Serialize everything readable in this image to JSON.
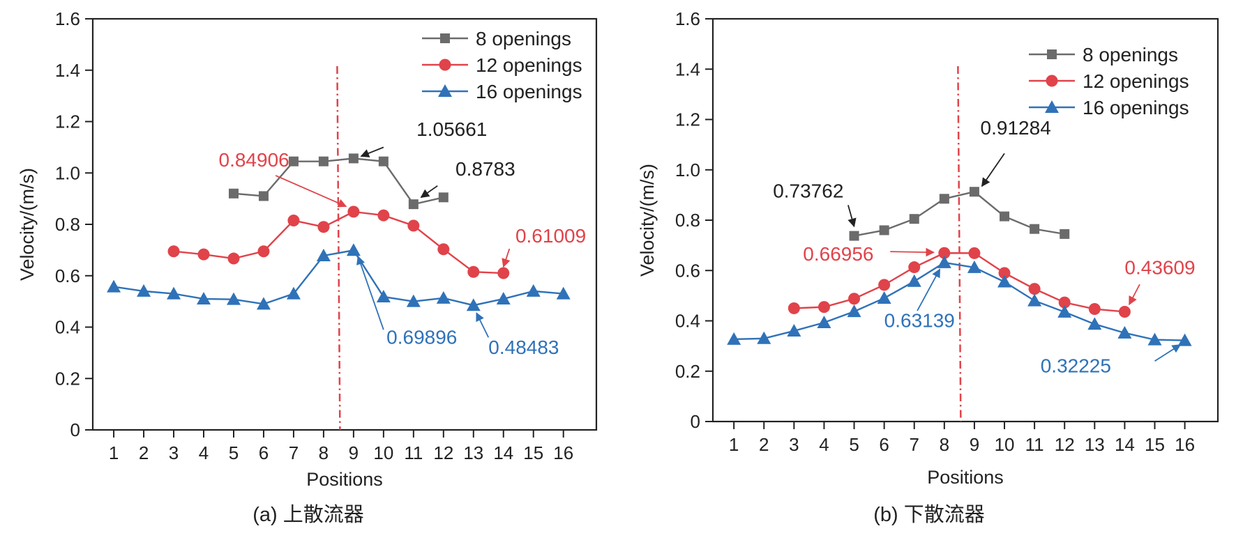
{
  "chart_data": [
    {
      "type": "line",
      "caption": "(a) 上散流器",
      "xlabel": "Positions",
      "ylabel": "Velocity/(m/s)",
      "xlim": [
        0.3,
        17.1
      ],
      "ylim": [
        0,
        1.6
      ],
      "xticks": [
        1,
        2,
        3,
        4,
        5,
        6,
        7,
        8,
        9,
        10,
        11,
        12,
        13,
        14,
        15,
        16
      ],
      "yticks": [
        0,
        0.2,
        0.4,
        0.6,
        0.8,
        1.0,
        1.2,
        1.4,
        1.6
      ],
      "ytick_labels": [
        "0",
        "0.2",
        "0.4",
        "0.6",
        "0.8",
        "1.0",
        "1.2",
        "1.4",
        "1.6"
      ],
      "divider_x": 8.5,
      "legend_position": "top-right",
      "series": [
        {
          "name": "8 openings",
          "marker": "square",
          "color": "#6b6b6b",
          "x": [
            5,
            6,
            7,
            8,
            9,
            10,
            11,
            12
          ],
          "y": [
            0.92,
            0.91,
            1.045,
            1.045,
            1.05661,
            1.045,
            0.8783,
            0.905
          ]
        },
        {
          "name": "12 openings",
          "marker": "circle",
          "color": "#e0434a",
          "x": [
            3,
            4,
            5,
            6,
            7,
            8,
            9,
            10,
            11,
            12,
            13,
            14
          ],
          "y": [
            0.695,
            0.683,
            0.667,
            0.695,
            0.815,
            0.79,
            0.84906,
            0.835,
            0.795,
            0.703,
            0.615,
            0.61009
          ]
        },
        {
          "name": "16 openings",
          "marker": "triangle",
          "color": "#2f72b8",
          "x": [
            1,
            2,
            3,
            4,
            5,
            6,
            7,
            8,
            9,
            10,
            11,
            12,
            13,
            14,
            15,
            16
          ],
          "y": [
            0.557,
            0.54,
            0.53,
            0.51,
            0.508,
            0.49,
            0.53,
            0.678,
            0.69896,
            0.518,
            0.5,
            0.513,
            0.48483,
            0.51,
            0.54,
            0.53
          ]
        }
      ],
      "annotations": [
        {
          "text": "1.05661",
          "color": "#222222",
          "text_x": 11.1,
          "text_y": 1.145,
          "arrow_from": [
            10.0,
            1.1
          ],
          "arrow_to": [
            9.25,
            1.065
          ]
        },
        {
          "text": "0.8783",
          "color": "#222222",
          "text_x": 12.4,
          "text_y": 0.99,
          "arrow_from": [
            11.8,
            0.95
          ],
          "arrow_to": [
            11.25,
            0.905
          ]
        },
        {
          "text": "0.84906",
          "color": "#e0434a",
          "text_x": 4.5,
          "text_y": 1.025,
          "arrow_from": [
            6.4,
            0.99
          ],
          "arrow_to": [
            8.75,
            0.87
          ]
        },
        {
          "text": "0.61009",
          "color": "#e0434a",
          "text_x": 14.4,
          "text_y": 0.73,
          "arrow_from": [
            14.2,
            0.705
          ],
          "arrow_to": [
            14.0,
            0.635
          ]
        },
        {
          "text": "0.69896",
          "color": "#2f72b8",
          "text_x": 10.1,
          "text_y": 0.335,
          "arrow_from": [
            10.0,
            0.39
          ],
          "arrow_to": [
            9.15,
            0.675
          ]
        },
        {
          "text": "0.48483",
          "color": "#2f72b8",
          "text_x": 13.5,
          "text_y": 0.295,
          "arrow_from": [
            13.5,
            0.36
          ],
          "arrow_to": [
            13.1,
            0.455
          ]
        }
      ]
    },
    {
      "type": "line",
      "caption": "(b) 下散流器",
      "xlabel": "Positions",
      "ylabel": "Velocity/(m/s)",
      "xlim": [
        0.3,
        17.1
      ],
      "ylim": [
        0,
        1.6
      ],
      "xticks": [
        1,
        2,
        3,
        4,
        5,
        6,
        7,
        8,
        9,
        10,
        11,
        12,
        13,
        14,
        15,
        16
      ],
      "yticks": [
        0,
        0.2,
        0.4,
        0.6,
        0.8,
        1.0,
        1.2,
        1.4,
        1.6
      ],
      "ytick_labels": [
        "0",
        "0.2",
        "0.4",
        "0.6",
        "0.8",
        "1.0",
        "1.2",
        "1.4",
        "1.6"
      ],
      "divider_x": 8.5,
      "legend_position": "top-right",
      "series": [
        {
          "name": "8 openings",
          "marker": "square",
          "color": "#6b6b6b",
          "x": [
            5,
            6,
            7,
            8,
            9,
            10,
            11,
            12
          ],
          "y": [
            0.73762,
            0.76,
            0.805,
            0.885,
            0.91284,
            0.815,
            0.765,
            0.745
          ]
        },
        {
          "name": "12 openings",
          "marker": "circle",
          "color": "#e0434a",
          "x": [
            3,
            4,
            5,
            6,
            7,
            8,
            9,
            10,
            11,
            12,
            13,
            14
          ],
          "y": [
            0.45,
            0.455,
            0.488,
            0.543,
            0.613,
            0.66956,
            0.669,
            0.59,
            0.527,
            0.473,
            0.447,
            0.43609
          ]
        },
        {
          "name": "16 openings",
          "marker": "triangle",
          "color": "#2f72b8",
          "x": [
            1,
            2,
            3,
            4,
            5,
            6,
            7,
            8,
            9,
            10,
            11,
            12,
            13,
            14,
            15,
            16
          ],
          "y": [
            0.327,
            0.33,
            0.36,
            0.393,
            0.437,
            0.49,
            0.557,
            0.63139,
            0.612,
            0.555,
            0.48,
            0.435,
            0.387,
            0.352,
            0.325,
            0.32225
          ]
        }
      ],
      "annotations": [
        {
          "text": "0.91284",
          "color": "#222222",
          "text_x": 9.2,
          "text_y": 1.14,
          "arrow_from": [
            10.0,
            1.065
          ],
          "arrow_to": [
            9.25,
            0.935
          ]
        },
        {
          "text": "0.73762",
          "color": "#222222",
          "text_x": 2.3,
          "text_y": 0.89,
          "arrow_from": [
            4.8,
            0.86
          ],
          "arrow_to": [
            5.0,
            0.775
          ]
        },
        {
          "text": "0.66956",
          "color": "#e0434a",
          "text_x": 3.3,
          "text_y": 0.64,
          "arrow_from": [
            6.2,
            0.675
          ],
          "arrow_to": [
            7.65,
            0.672
          ]
        },
        {
          "text": "0.43609",
          "color": "#e0434a",
          "text_x": 14.0,
          "text_y": 0.585,
          "arrow_from": [
            14.5,
            0.545
          ],
          "arrow_to": [
            14.15,
            0.465
          ]
        },
        {
          "text": "0.63139",
          "color": "#2f72b8",
          "text_x": 6.0,
          "text_y": 0.375,
          "arrow_from": [
            7.1,
            0.44
          ],
          "arrow_to": [
            7.85,
            0.605
          ]
        },
        {
          "text": "0.32225",
          "color": "#2f72b8",
          "text_x": 11.2,
          "text_y": 0.195,
          "arrow_from": [
            15.0,
            0.24
          ],
          "arrow_to": [
            15.85,
            0.305
          ]
        }
      ]
    }
  ]
}
